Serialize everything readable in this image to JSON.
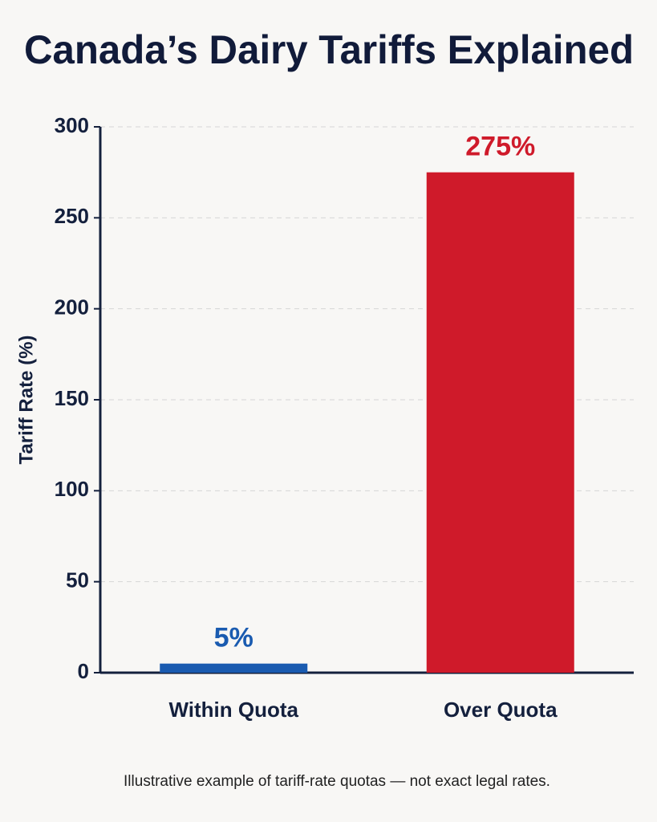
{
  "chart_data": {
    "type": "bar",
    "title": "Canada’s Dairy Tariffs Explained",
    "y_label": "Tariff Rate (%)",
    "categories": [
      "Within Quota",
      "Over Quota"
    ],
    "values": [
      5,
      275
    ],
    "value_labels": [
      "5%",
      "275%"
    ],
    "colors": [
      "#1a5bb0",
      "#cf1a2a"
    ],
    "ylim": [
      0,
      300
    ],
    "yticks": [
      0,
      50,
      100,
      150,
      200,
      250,
      300
    ],
    "grid": true,
    "note": "Illustrative example of tariff-rate quotas — not exact legal rates."
  }
}
